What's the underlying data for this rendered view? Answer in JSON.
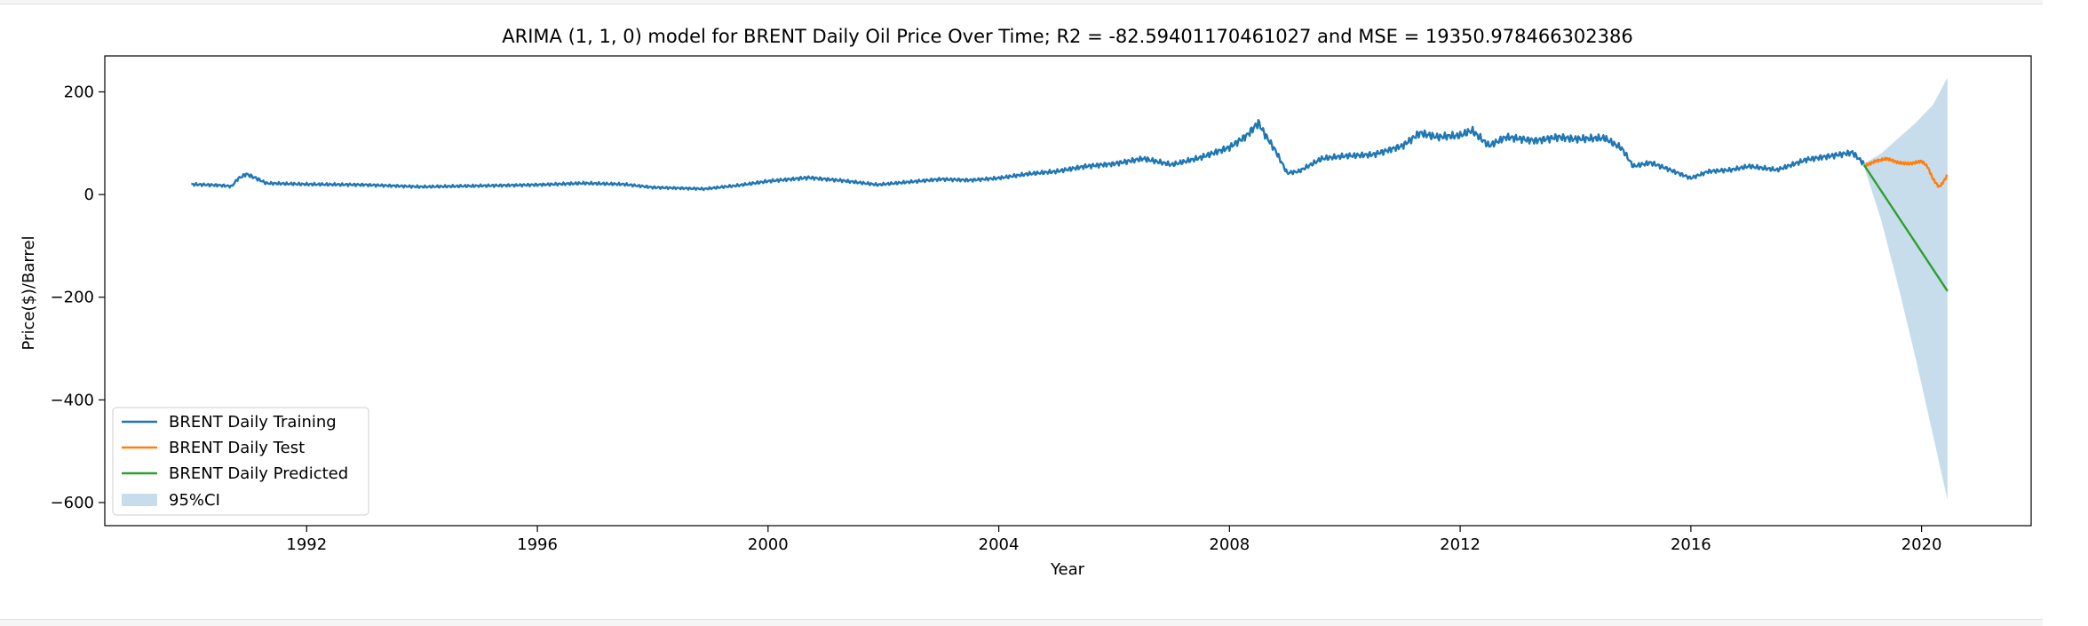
{
  "chart_data": {
    "type": "line",
    "title": "ARIMA (1, 1, 0) model for BRENT Daily Oil Price Over Time; R2 = -82.59401170461027 and MSE = 19350.978466302386",
    "xlabel": "Year",
    "ylabel": "Price($)/Barrel",
    "xlim": [
      1988.5,
      2021.9
    ],
    "ylim": [
      -645,
      270
    ],
    "xticks": [
      1992,
      1996,
      2000,
      2004,
      2008,
      2012,
      2016,
      2020
    ],
    "yticks": [
      200,
      0,
      -200,
      -400,
      -600
    ],
    "ytick_labels": [
      "200",
      "0",
      "−200",
      "−400",
      "−600"
    ],
    "grid": false,
    "legend_position": "lower-left",
    "series": [
      {
        "name": "BRENT Daily Training",
        "color": "#1f77b4",
        "points": [
          [
            1990.0,
            20
          ],
          [
            1990.5,
            18
          ],
          [
            1990.7,
            16
          ],
          [
            1990.8,
            30
          ],
          [
            1990.95,
            40
          ],
          [
            1991.1,
            33
          ],
          [
            1991.3,
            22
          ],
          [
            1992.0,
            20
          ],
          [
            1993.0,
            19
          ],
          [
            1994.0,
            15
          ],
          [
            1995.0,
            17
          ],
          [
            1996.0,
            19
          ],
          [
            1996.8,
            22
          ],
          [
            1997.5,
            20
          ],
          [
            1998.0,
            14
          ],
          [
            1998.9,
            11
          ],
          [
            1999.5,
            18
          ],
          [
            2000.0,
            26
          ],
          [
            2000.7,
            33
          ],
          [
            2001.3,
            27
          ],
          [
            2001.9,
            19
          ],
          [
            2002.5,
            25
          ],
          [
            2003.0,
            30
          ],
          [
            2003.5,
            28
          ],
          [
            2004.0,
            32
          ],
          [
            2004.5,
            40
          ],
          [
            2005.0,
            45
          ],
          [
            2005.5,
            55
          ],
          [
            2006.0,
            60
          ],
          [
            2006.5,
            70
          ],
          [
            2007.0,
            58
          ],
          [
            2007.5,
            72
          ],
          [
            2008.0,
            92
          ],
          [
            2008.3,
            115
          ],
          [
            2008.5,
            140
          ],
          [
            2008.6,
            120
          ],
          [
            2008.8,
            85
          ],
          [
            2009.0,
            42
          ],
          [
            2009.2,
            45
          ],
          [
            2009.6,
            70
          ],
          [
            2010.0,
            75
          ],
          [
            2010.5,
            78
          ],
          [
            2011.0,
            95
          ],
          [
            2011.3,
            120
          ],
          [
            2011.6,
            112
          ],
          [
            2012.0,
            115
          ],
          [
            2012.2,
            125
          ],
          [
            2012.5,
            95
          ],
          [
            2012.8,
            112
          ],
          [
            2013.3,
            105
          ],
          [
            2013.7,
            112
          ],
          [
            2014.0,
            108
          ],
          [
            2014.5,
            110
          ],
          [
            2014.8,
            90
          ],
          [
            2015.0,
            55
          ],
          [
            2015.3,
            62
          ],
          [
            2015.6,
            50
          ],
          [
            2016.0,
            32
          ],
          [
            2016.3,
            45
          ],
          [
            2016.7,
            48
          ],
          [
            2017.0,
            55
          ],
          [
            2017.5,
            48
          ],
          [
            2018.0,
            68
          ],
          [
            2018.4,
            75
          ],
          [
            2018.8,
            82
          ],
          [
            2019.0,
            60
          ]
        ]
      },
      {
        "name": "BRENT Daily Test",
        "color": "#ff7f0e",
        "points": [
          [
            2019.0,
            55
          ],
          [
            2019.2,
            65
          ],
          [
            2019.4,
            70
          ],
          [
            2019.6,
            62
          ],
          [
            2019.8,
            60
          ],
          [
            2020.0,
            65
          ],
          [
            2020.1,
            55
          ],
          [
            2020.2,
            30
          ],
          [
            2020.3,
            15
          ],
          [
            2020.35,
            20
          ],
          [
            2020.45,
            38
          ]
        ]
      },
      {
        "name": "BRENT Daily Predicted",
        "color": "#2ca02c",
        "points": [
          [
            2019.0,
            58
          ],
          [
            2020.45,
            -188
          ]
        ]
      }
    ],
    "confidence_interval": {
      "name": "95%CI",
      "color": "#1f77b4",
      "opacity": 0.25,
      "x": [
        2019.0,
        2019.3,
        2019.6,
        2019.9,
        2020.2,
        2020.45
      ],
      "upper": [
        60,
        80,
        110,
        140,
        175,
        228
      ],
      "lower": [
        55,
        -50,
        -180,
        -320,
        -470,
        -595
      ]
    }
  }
}
